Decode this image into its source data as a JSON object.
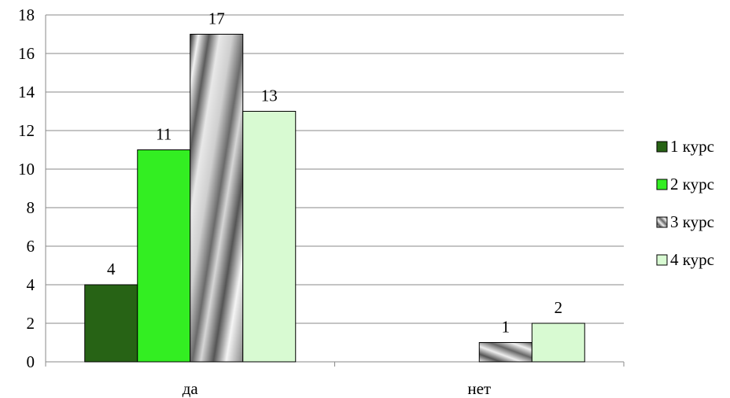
{
  "chart_data": {
    "type": "bar",
    "title": "",
    "xlabel": "",
    "ylabel": "",
    "categories": [
      "да",
      "нет"
    ],
    "ylim": [
      0,
      18
    ],
    "yticks": [
      0,
      2,
      4,
      6,
      8,
      10,
      12,
      14,
      16,
      18
    ],
    "grid": true,
    "legend_position": "right",
    "series": [
      {
        "name": "1 курс",
        "values": [
          4,
          null
        ],
        "labels": [
          "4",
          ""
        ],
        "color": "#276315",
        "pattern": "solid"
      },
      {
        "name": "2 курс",
        "values": [
          11,
          null
        ],
        "labels": [
          "11",
          ""
        ],
        "color": "#33ee22",
        "pattern": "solid"
      },
      {
        "name": "3 курс",
        "values": [
          17,
          1
        ],
        "labels": [
          "17",
          "1"
        ],
        "color": "#9a9a9a",
        "pattern": "diagonal-metallic"
      },
      {
        "name": "4 курс",
        "values": [
          13,
          2
        ],
        "labels": [
          "13",
          "2"
        ],
        "color": "#d8fad2",
        "pattern": "solid"
      }
    ]
  }
}
